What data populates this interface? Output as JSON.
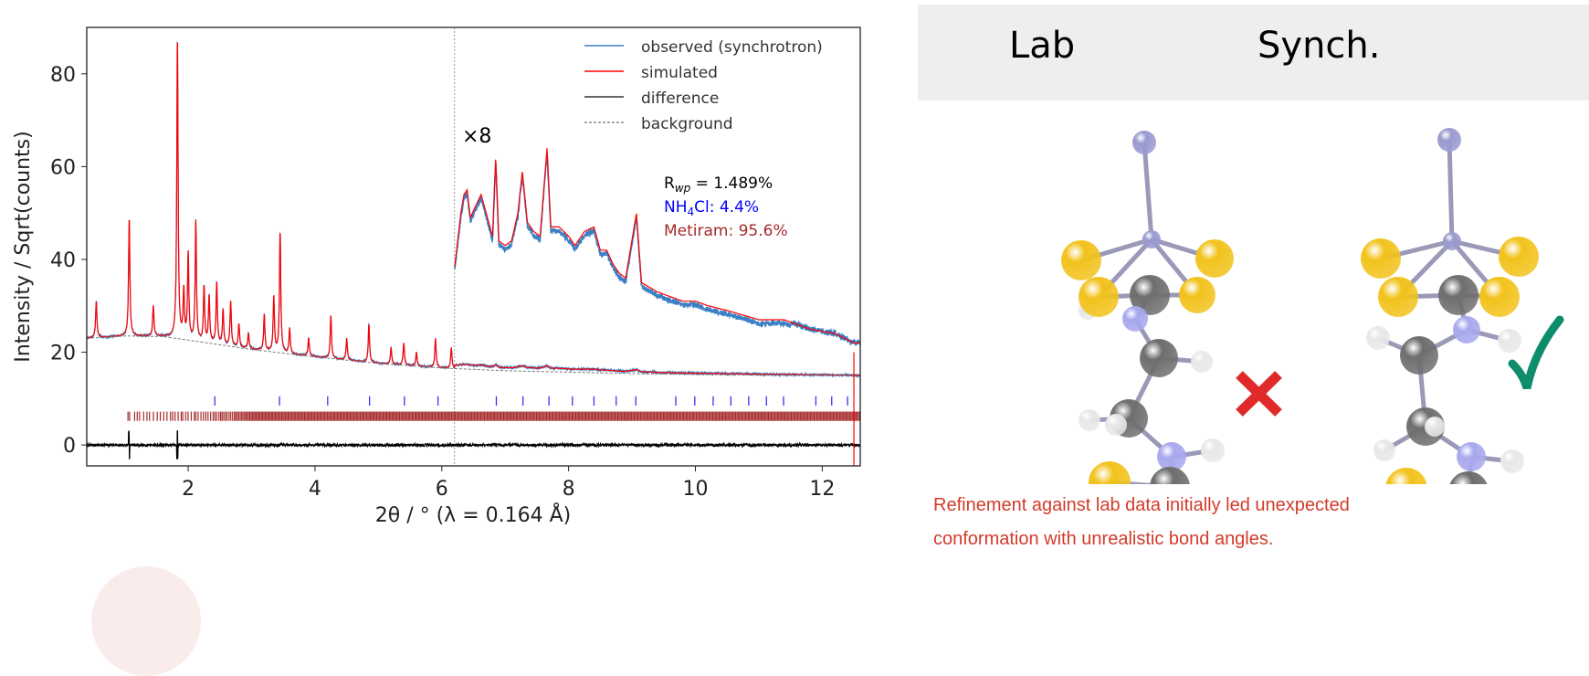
{
  "chart_data": {
    "type": "line",
    "xlabel": "2θ / ° (λ = 0.164 Å)",
    "ylabel": "Intensity / Sqrt(counts)",
    "xlim": [
      0.4,
      12.6
    ],
    "ylim": [
      -4.5,
      90
    ],
    "xticks": [
      2,
      4,
      6,
      8,
      10,
      12
    ],
    "yticks": [
      0,
      20,
      40,
      60,
      80
    ],
    "grid": false,
    "legend": {
      "placement": "top-right",
      "entries": [
        {
          "label": "observed (synchrotron)",
          "color": "#3b7fc4",
          "style": "solid"
        },
        {
          "label": "simulated",
          "color": "#ff0000",
          "style": "solid"
        },
        {
          "label": "difference",
          "color": "#333333",
          "style": "solid"
        },
        {
          "label": "background",
          "color": "#888888",
          "style": "dashed"
        }
      ]
    },
    "annotations": {
      "scale_label": "×8",
      "scale_start_x": 6.2,
      "rwp_label": "R",
      "rwp_sub": "wp",
      "rwp_value": " = 1.489%",
      "phase1_pre": "NH",
      "phase1_sub": "4",
      "phase1_post": "Cl: 4.4%",
      "phase1_color": "#0000ff",
      "phase2": "Metiram: 95.6%",
      "phase2_color": "#a52a2a",
      "cutoff_x": 12.5
    },
    "background": [
      [
        0.4,
        23
      ],
      [
        1.0,
        23.5
      ],
      [
        1.6,
        23.4
      ],
      [
        2.0,
        22.6
      ],
      [
        2.5,
        21.6
      ],
      [
        3.0,
        20.6
      ],
      [
        3.5,
        19.8
      ],
      [
        4.0,
        19.0
      ],
      [
        4.5,
        18.3
      ],
      [
        5.0,
        17.6
      ],
      [
        5.5,
        17.1
      ],
      [
        6.0,
        16.6
      ],
      [
        7.0,
        16.0
      ],
      [
        8.0,
        15.7
      ],
      [
        9.0,
        15.4
      ],
      [
        10.0,
        15.2
      ],
      [
        11.0,
        15.1
      ],
      [
        12.6,
        15.0
      ]
    ],
    "simulated_peaks": [
      [
        0.55,
        31
      ],
      [
        1.07,
        49
      ],
      [
        1.45,
        30
      ],
      [
        1.83,
        88
      ],
      [
        1.93,
        33
      ],
      [
        2.0,
        41
      ],
      [
        2.12,
        48
      ],
      [
        2.25,
        34
      ],
      [
        2.33,
        32
      ],
      [
        2.45,
        35
      ],
      [
        2.55,
        29
      ],
      [
        2.67,
        31
      ],
      [
        2.8,
        26
      ],
      [
        2.95,
        24
      ],
      [
        3.2,
        28
      ],
      [
        3.35,
        32
      ],
      [
        3.45,
        46
      ],
      [
        3.6,
        25
      ],
      [
        3.9,
        23
      ],
      [
        4.25,
        28
      ],
      [
        4.5,
        23
      ],
      [
        4.85,
        26
      ],
      [
        5.2,
        21
      ],
      [
        5.4,
        22
      ],
      [
        5.6,
        20
      ],
      [
        5.9,
        23
      ],
      [
        6.15,
        21
      ]
    ],
    "scaled_x8_profile": [
      [
        6.2,
        38
      ],
      [
        6.25,
        44
      ],
      [
        6.3,
        50
      ],
      [
        6.35,
        54
      ],
      [
        6.4,
        55
      ],
      [
        6.45,
        49
      ],
      [
        6.55,
        52
      ],
      [
        6.62,
        54
      ],
      [
        6.7,
        50
      ],
      [
        6.8,
        45
      ],
      [
        6.85,
        62
      ],
      [
        6.9,
        44
      ],
      [
        7.0,
        43
      ],
      [
        7.1,
        44
      ],
      [
        7.2,
        50
      ],
      [
        7.27,
        59
      ],
      [
        7.35,
        48
      ],
      [
        7.45,
        46
      ],
      [
        7.55,
        45
      ],
      [
        7.66,
        64
      ],
      [
        7.72,
        47
      ],
      [
        7.85,
        47
      ],
      [
        8.0,
        45
      ],
      [
        8.1,
        43
      ],
      [
        8.25,
        46
      ],
      [
        8.4,
        47
      ],
      [
        8.5,
        42
      ],
      [
        8.6,
        42
      ],
      [
        8.7,
        39
      ],
      [
        8.8,
        37
      ],
      [
        8.9,
        36
      ],
      [
        9.07,
        50
      ],
      [
        9.15,
        35
      ],
      [
        9.4,
        33
      ],
      [
        9.6,
        32
      ],
      [
        9.8,
        31
      ],
      [
        10.0,
        31
      ],
      [
        10.2,
        30
      ],
      [
        10.5,
        29
      ],
      [
        11.0,
        27
      ],
      [
        11.4,
        27
      ],
      [
        11.8,
        25
      ],
      [
        12.2,
        24
      ],
      [
        12.5,
        22
      ]
    ],
    "difference_spikes": [
      [
        1.07,
        -3
      ],
      [
        1.83,
        -3
      ]
    ],
    "nh4cl_ticks": [
      2.42,
      3.44,
      4.2,
      4.86,
      5.41,
      5.94,
      6.86,
      7.28,
      7.69,
      8.06,
      8.4,
      8.75,
      9.06,
      9.69,
      9.99,
      10.28,
      10.56,
      10.84,
      11.12,
      11.39,
      11.9,
      12.15,
      12.4
    ],
    "metiram_ticks_range": [
      1.05,
      12.6
    ]
  },
  "panel": {
    "lab_label": "Lab",
    "synch_label": "Synch.",
    "lab_verdict_icon": "cross-icon",
    "synch_verdict_icon": "check-icon",
    "caption_line1": "Refinement against lab data initially led unexpected",
    "caption_line2": "conformation with unrealistic bond angles.",
    "colors": {
      "sulfur": "#f2c21c",
      "zinc_manganese": "#9a9ad0",
      "carbon": "#6e6e6e",
      "nitrogen": "#a8a8ee",
      "hydrogen": "#e8e8e8",
      "cross": "#e02a2a",
      "check": "#0f8c6c"
    }
  }
}
